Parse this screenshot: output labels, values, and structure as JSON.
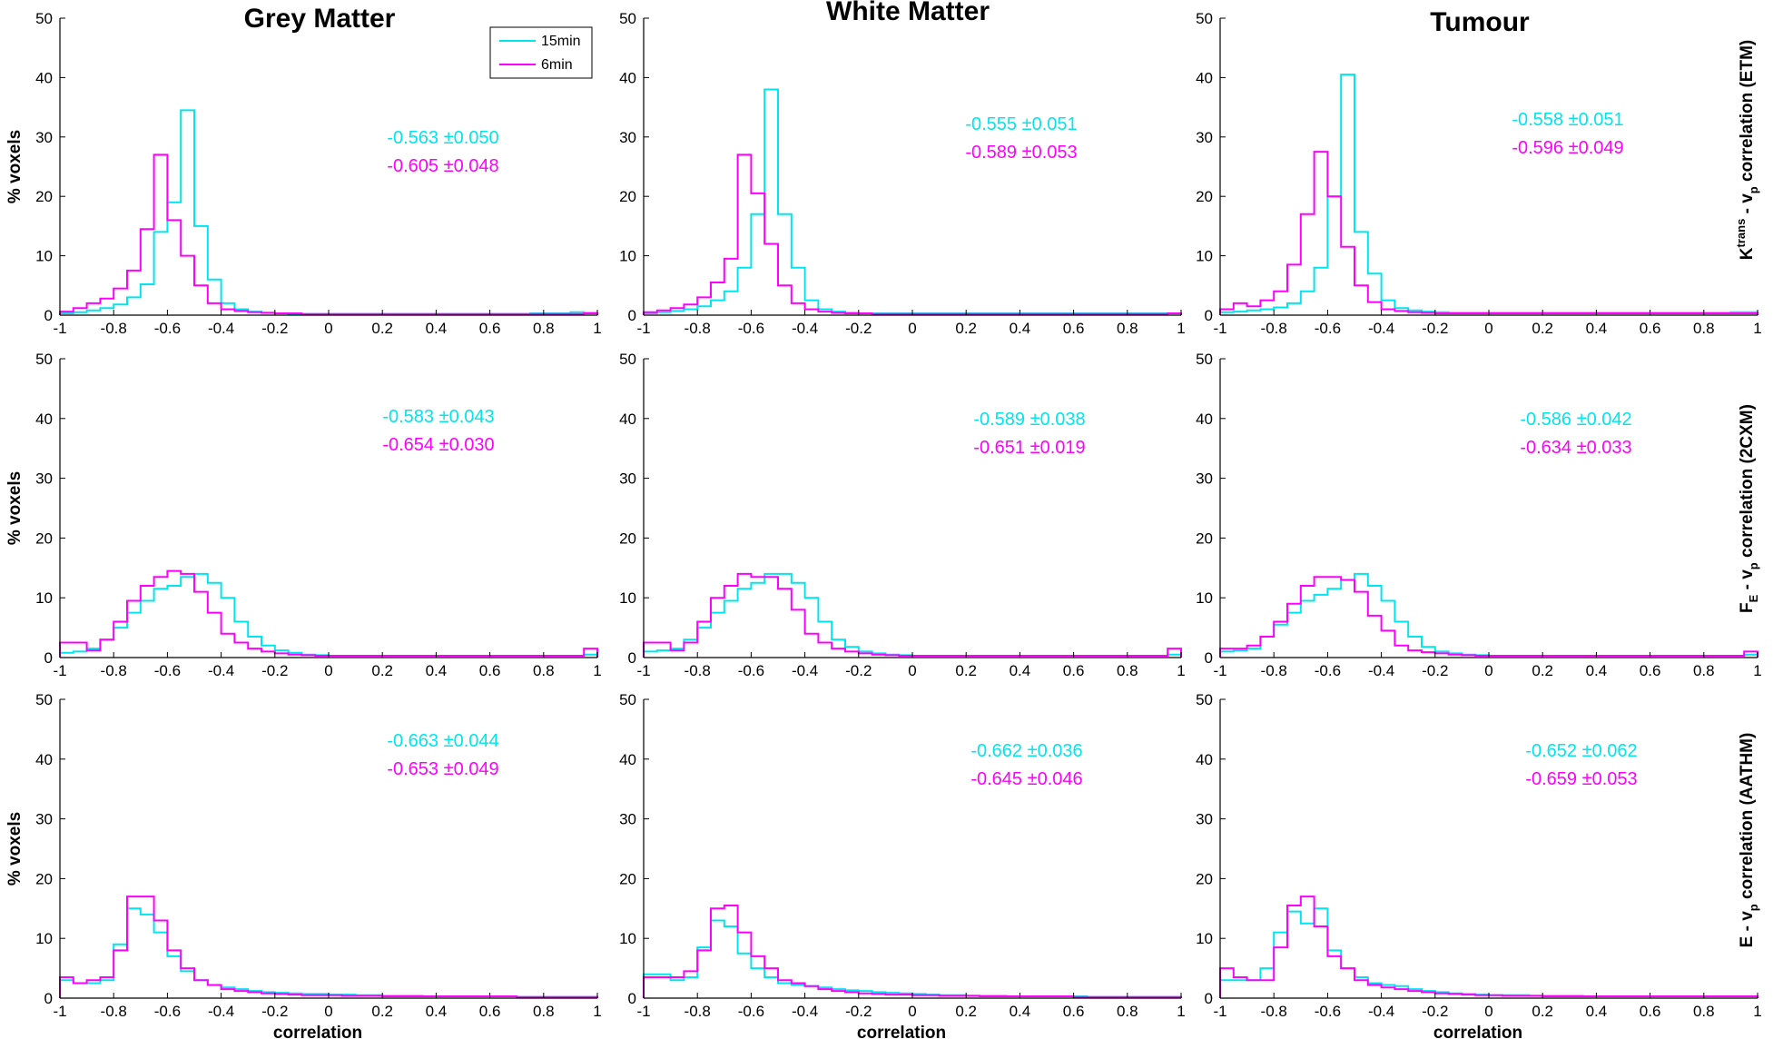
{
  "figure": {
    "column_titles": [
      "Grey Matter",
      "White Matter",
      "Tumour"
    ],
    "row_labels": [
      {
        "main": "K",
        "sup": "trans",
        "mid": " - v",
        "sub": "p",
        "tail": " correlation (ETM)"
      },
      {
        "main": "F",
        "sup": "",
        "mid": "",
        "sub": "E",
        "tail": " - v",
        "sub2": "p",
        "tail2": " correlation (2CXM)"
      },
      {
        "main": "E - v",
        "sup": "",
        "mid": "",
        "sub": "p",
        "tail": " correlation (AATHM)"
      }
    ],
    "ylabel": "% voxels",
    "xlabel": "correlation",
    "legend": {
      "entries": [
        {
          "label": "15min",
          "color": "#00e5ee"
        },
        {
          "label": "6min",
          "color": "#ff00ff"
        }
      ]
    },
    "colors": {
      "series_15min": "#00e5ee",
      "series_6min": "#ff00ff"
    }
  },
  "chart_data": [
    {
      "type": "bar",
      "row": 0,
      "col": 0,
      "title": "Grey Matter",
      "xlim": [
        -1,
        1
      ],
      "ylim": [
        0,
        50
      ],
      "xticks": [
        "-1",
        "-0.8",
        "-0.6",
        "-0.4",
        "-0.2",
        "0",
        "0.2",
        "0.4",
        "0.6",
        "0.8",
        "1"
      ],
      "yticks": [
        "0",
        "10",
        "20",
        "30",
        "40",
        "50"
      ],
      "series": [
        {
          "name": "15min",
          "stats": "-0.563 ±0.050",
          "values": [
            0.3,
            0.5,
            0.8,
            1.2,
            1.8,
            3.0,
            5.2,
            14,
            19,
            34.5,
            15,
            6,
            2,
            1,
            0.6,
            0.4,
            0.3,
            0.2,
            0.2,
            0.2,
            0.2,
            0.2,
            0.2,
            0.2,
            0.2,
            0.2,
            0.2,
            0.2,
            0.2,
            0.2,
            0.2,
            0.2,
            0.2,
            0.2,
            0.2,
            0.3,
            0.3,
            0.3,
            0.5,
            0.4
          ]
        },
        {
          "name": "6min",
          "stats": "-0.605 ±0.048",
          "values": [
            0.6,
            1.2,
            2,
            2.8,
            4.5,
            7.5,
            14.5,
            27,
            16,
            10,
            5,
            2,
            1,
            0.7,
            0.5,
            0.4,
            0.3,
            0.3,
            0.2,
            0.2,
            0.2,
            0.2,
            0.2,
            0.2,
            0.2,
            0.2,
            0.2,
            0.2,
            0.2,
            0.2,
            0.2,
            0.2,
            0.2,
            0.2,
            0.2,
            0.2,
            0.2,
            0.2,
            0.2,
            0.3
          ]
        }
      ]
    },
    {
      "type": "bar",
      "row": 0,
      "col": 1,
      "title": "White Matter",
      "xlim": [
        -1,
        1
      ],
      "ylim": [
        0,
        50
      ],
      "xticks": [
        "-1",
        "-0.8",
        "-0.6",
        "-0.4",
        "-0.2",
        "0",
        "0.2",
        "0.4",
        "0.6",
        "0.8",
        "1"
      ],
      "yticks": [
        "0",
        "10",
        "20",
        "30",
        "40",
        "50"
      ],
      "series": [
        {
          "name": "15min",
          "stats": "-0.555 ±0.051",
          "values": [
            0.3,
            0.5,
            0.7,
            1,
            1.5,
            2.5,
            4,
            8,
            17,
            38,
            17,
            8,
            2.5,
            1,
            0.6,
            0.4,
            0.3,
            0.3,
            0.3,
            0.3,
            0.3,
            0.3,
            0.3,
            0.3,
            0.3,
            0.3,
            0.3,
            0.3,
            0.3,
            0.3,
            0.3,
            0.3,
            0.3,
            0.3,
            0.3,
            0.3,
            0.3,
            0.3,
            0.3,
            0.3
          ]
        },
        {
          "name": "6min",
          "stats": "-0.589 ±0.053",
          "values": [
            0.5,
            0.8,
            1.2,
            1.8,
            3,
            5.5,
            9.5,
            27,
            20.5,
            12,
            5,
            2,
            1,
            0.6,
            0.4,
            0.3,
            0.3,
            0.2,
            0.2,
            0.2,
            0.2,
            0.2,
            0.2,
            0.2,
            0.2,
            0.2,
            0.2,
            0.2,
            0.2,
            0.2,
            0.2,
            0.2,
            0.2,
            0.2,
            0.2,
            0.2,
            0.2,
            0.2,
            0.2,
            0.3
          ]
        }
      ]
    },
    {
      "type": "bar",
      "row": 0,
      "col": 2,
      "title": "Tumour",
      "xlim": [
        -1,
        1
      ],
      "ylim": [
        0,
        50
      ],
      "xticks": [
        "-1",
        "-0.8",
        "-0.6",
        "-0.4",
        "-0.2",
        "0",
        "0.2",
        "0.4",
        "0.6",
        "0.8",
        "1"
      ],
      "yticks": [
        "0",
        "10",
        "20",
        "30",
        "40",
        "50"
      ],
      "series": [
        {
          "name": "15min",
          "stats": "-0.558 ±0.051",
          "values": [
            0.5,
            0.6,
            0.8,
            1,
            1.3,
            2,
            4,
            8,
            20,
            40.5,
            14,
            7,
            2.5,
            1.2,
            0.8,
            0.6,
            0.5,
            0.4,
            0.4,
            0.4,
            0.4,
            0.4,
            0.4,
            0.4,
            0.4,
            0.4,
            0.4,
            0.4,
            0.4,
            0.4,
            0.4,
            0.4,
            0.4,
            0.4,
            0.4,
            0.4,
            0.4,
            0.4,
            0.5,
            0.5
          ]
        },
        {
          "name": "6min",
          "stats": "-0.596 ±0.049",
          "values": [
            1,
            2,
            1.5,
            2.5,
            4,
            8.5,
            17,
            27.5,
            20,
            11.5,
            5,
            2.2,
            1,
            0.7,
            0.5,
            0.4,
            0.3,
            0.3,
            0.3,
            0.3,
            0.3,
            0.3,
            0.3,
            0.3,
            0.3,
            0.3,
            0.3,
            0.3,
            0.3,
            0.3,
            0.3,
            0.3,
            0.3,
            0.3,
            0.3,
            0.3,
            0.3,
            0.3,
            0.3,
            0.3
          ]
        }
      ]
    },
    {
      "type": "bar",
      "row": 1,
      "col": 0,
      "xlim": [
        -1,
        1
      ],
      "ylim": [
        0,
        50
      ],
      "xticks": [
        "-1",
        "-0.8",
        "-0.6",
        "-0.4",
        "-0.2",
        "0",
        "0.2",
        "0.4",
        "0.6",
        "0.8",
        "1"
      ],
      "yticks": [
        "0",
        "10",
        "20",
        "30",
        "40",
        "50"
      ],
      "series": [
        {
          "name": "15min",
          "stats": "-0.583 ±0.043",
          "values": [
            0.8,
            1,
            1.5,
            3,
            5,
            7.5,
            9.5,
            11.5,
            12,
            13.5,
            14,
            12.5,
            10,
            6,
            3.5,
            2,
            1.2,
            0.8,
            0.5,
            0.4,
            0.3,
            0.3,
            0.3,
            0.3,
            0.3,
            0.3,
            0.3,
            0.3,
            0.3,
            0.3,
            0.3,
            0.3,
            0.3,
            0.3,
            0.3,
            0.3,
            0.3,
            0.3,
            0.3,
            0.5
          ]
        },
        {
          "name": "6min",
          "stats": "-0.654 ±0.030",
          "values": [
            2.5,
            2.5,
            1.2,
            3,
            6,
            9.5,
            12,
            13.5,
            14.5,
            14,
            11,
            7.5,
            4,
            2.5,
            1.5,
            1,
            0.7,
            0.5,
            0.4,
            0.3,
            0.3,
            0.3,
            0.3,
            0.3,
            0.3,
            0.3,
            0.3,
            0.3,
            0.3,
            0.3,
            0.3,
            0.3,
            0.3,
            0.3,
            0.3,
            0.3,
            0.3,
            0.3,
            0.3,
            1.5
          ]
        }
      ]
    },
    {
      "type": "bar",
      "row": 1,
      "col": 1,
      "xlim": [
        -1,
        1
      ],
      "ylim": [
        0,
        50
      ],
      "xticks": [
        "-1",
        "-0.8",
        "-0.6",
        "-0.4",
        "-0.2",
        "0",
        "0.2",
        "0.4",
        "0.6",
        "0.8",
        "1"
      ],
      "yticks": [
        "0",
        "10",
        "20",
        "30",
        "40",
        "50"
      ],
      "series": [
        {
          "name": "15min",
          "stats": "-0.589 ±0.038",
          "values": [
            1,
            1.2,
            1.5,
            3,
            5,
            7.5,
            9.5,
            11.5,
            12.5,
            14,
            14,
            12.5,
            10,
            6,
            3,
            1.8,
            1,
            0.7,
            0.5,
            0.4,
            0.3,
            0.3,
            0.3,
            0.3,
            0.3,
            0.3,
            0.3,
            0.3,
            0.3,
            0.3,
            0.3,
            0.3,
            0.3,
            0.3,
            0.3,
            0.3,
            0.3,
            0.3,
            0.3,
            0.5
          ]
        },
        {
          "name": "6min",
          "stats": "-0.651 ±0.019",
          "values": [
            2.5,
            2.5,
            1.2,
            2.5,
            6,
            10,
            12,
            14,
            13.5,
            13.5,
            11.5,
            8,
            4,
            2.5,
            1.5,
            1,
            0.7,
            0.5,
            0.4,
            0.3,
            0.3,
            0.3,
            0.3,
            0.3,
            0.3,
            0.3,
            0.3,
            0.3,
            0.3,
            0.3,
            0.3,
            0.3,
            0.3,
            0.3,
            0.3,
            0.3,
            0.3,
            0.3,
            0.3,
            1.5
          ]
        }
      ]
    },
    {
      "type": "bar",
      "row": 1,
      "col": 2,
      "xlim": [
        -1,
        1
      ],
      "ylim": [
        0,
        50
      ],
      "xticks": [
        "-1",
        "-0.8",
        "-0.6",
        "-0.4",
        "-0.2",
        "0",
        "0.2",
        "0.4",
        "0.6",
        "0.8",
        "1"
      ],
      "yticks": [
        "0",
        "10",
        "20",
        "30",
        "40",
        "50"
      ],
      "series": [
        {
          "name": "15min",
          "stats": "-0.586 ±0.042",
          "values": [
            1,
            1.2,
            1.5,
            3.5,
            5.5,
            7.5,
            9.5,
            10.5,
            11.5,
            13,
            14,
            12,
            9.5,
            6,
            3.5,
            1.8,
            1,
            0.7,
            0.5,
            0.4,
            0.3,
            0.3,
            0.3,
            0.3,
            0.3,
            0.3,
            0.3,
            0.3,
            0.3,
            0.3,
            0.3,
            0.3,
            0.3,
            0.3,
            0.3,
            0.3,
            0.3,
            0.3,
            0.3,
            0.5
          ]
        },
        {
          "name": "6min",
          "stats": "-0.634 ±0.033",
          "values": [
            1.5,
            1.5,
            2,
            3.5,
            6,
            9,
            12,
            13.5,
            13.5,
            13,
            11,
            7,
            4.5,
            2,
            1.2,
            0.9,
            0.7,
            0.5,
            0.4,
            0.3,
            0.3,
            0.3,
            0.3,
            0.3,
            0.3,
            0.3,
            0.3,
            0.3,
            0.3,
            0.3,
            0.3,
            0.3,
            0.3,
            0.3,
            0.3,
            0.3,
            0.3,
            0.3,
            0.3,
            1
          ]
        }
      ]
    },
    {
      "type": "bar",
      "row": 2,
      "col": 0,
      "xlim": [
        -1,
        1
      ],
      "ylim": [
        0,
        50
      ],
      "xticks": [
        "-1",
        "-0.8",
        "-0.6",
        "-0.4",
        "-0.2",
        "0",
        "0.2",
        "0.4",
        "0.6",
        "0.8",
        "1"
      ],
      "yticks": [
        "0",
        "10",
        "20",
        "30",
        "40",
        "50"
      ],
      "series": [
        {
          "name": "15min",
          "stats": "-0.663 ±0.044",
          "values": [
            3,
            2.5,
            2.5,
            3,
            9,
            15,
            14,
            11,
            7,
            4.5,
            3,
            2.2,
            1.8,
            1.5,
            1.2,
            1,
            0.9,
            0.8,
            0.7,
            0.7,
            0.6,
            0.6,
            0.5,
            0.5,
            0.4,
            0.4,
            0.4,
            0.3,
            0.3,
            0.3,
            0.3,
            0.3,
            0.3,
            0.3,
            0.2,
            0.2,
            0.2,
            0.2,
            0.2,
            0.2
          ]
        },
        {
          "name": "6min",
          "stats": "-0.653 ±0.049",
          "values": [
            3.5,
            2.5,
            3,
            3.5,
            8,
            17,
            17,
            13,
            8,
            5,
            3,
            2.2,
            1.5,
            1.2,
            1,
            0.8,
            0.7,
            0.6,
            0.5,
            0.5,
            0.5,
            0.4,
            0.4,
            0.4,
            0.3,
            0.3,
            0.3,
            0.3,
            0.3,
            0.3,
            0.3,
            0.3,
            0.3,
            0.3,
            0.2,
            0.2,
            0.2,
            0.2,
            0.2,
            0.2
          ]
        }
      ]
    },
    {
      "type": "bar",
      "row": 2,
      "col": 1,
      "xlim": [
        -1,
        1
      ],
      "ylim": [
        0,
        50
      ],
      "xticks": [
        "-1",
        "-0.8",
        "-0.6",
        "-0.4",
        "-0.2",
        "0",
        "0.2",
        "0.4",
        "0.6",
        "0.8",
        "1"
      ],
      "yticks": [
        "0",
        "10",
        "20",
        "30",
        "40",
        "50"
      ],
      "series": [
        {
          "name": "15min",
          "stats": "-0.662 ±0.036",
          "values": [
            4,
            4,
            3,
            3.5,
            8.5,
            13,
            12,
            7.5,
            5,
            3.5,
            2.5,
            2.2,
            2,
            1.8,
            1.5,
            1.3,
            1.2,
            1,
            0.9,
            0.8,
            0.7,
            0.6,
            0.5,
            0.5,
            0.4,
            0.4,
            0.4,
            0.3,
            0.3,
            0.3,
            0.3,
            0.3,
            0.3,
            0.2,
            0.2,
            0.2,
            0.2,
            0.2,
            0.2,
            0.2
          ]
        },
        {
          "name": "6min",
          "stats": "-0.645 ±0.046",
          "values": [
            3.5,
            3.5,
            3.5,
            4.5,
            8,
            15,
            15.5,
            11,
            7,
            5,
            3,
            2.5,
            2,
            1.5,
            1.2,
            1,
            0.8,
            0.7,
            0.6,
            0.6,
            0.5,
            0.5,
            0.4,
            0.4,
            0.4,
            0.3,
            0.3,
            0.3,
            0.3,
            0.3,
            0.3,
            0.3,
            0.2,
            0.2,
            0.2,
            0.2,
            0.2,
            0.2,
            0.2,
            0.2
          ]
        }
      ]
    },
    {
      "type": "bar",
      "row": 2,
      "col": 2,
      "xlim": [
        -1,
        1
      ],
      "ylim": [
        0,
        50
      ],
      "xticks": [
        "-1",
        "-0.8",
        "-0.6",
        "-0.4",
        "-0.2",
        "0",
        "0.2",
        "0.4",
        "0.6",
        "0.8",
        "1"
      ],
      "yticks": [
        "0",
        "10",
        "20",
        "30",
        "40",
        "50"
      ],
      "series": [
        {
          "name": "15min",
          "stats": "-0.652 ±0.062",
          "values": [
            3,
            3,
            3,
            5,
            11,
            14.5,
            12.5,
            15,
            8,
            5,
            3.5,
            2.5,
            2.2,
            2,
            1.5,
            1.2,
            1,
            0.8,
            0.7,
            0.6,
            0.5,
            0.5,
            0.5,
            0.4,
            0.4,
            0.4,
            0.4,
            0.3,
            0.3,
            0.3,
            0.3,
            0.3,
            0.3,
            0.3,
            0.3,
            0.3,
            0.3,
            0.3,
            0.3,
            0.3
          ]
        },
        {
          "name": "6min",
          "stats": "-0.659 ±0.053",
          "values": [
            5,
            3.5,
            3,
            3,
            8.5,
            15.5,
            17,
            12,
            7,
            5,
            3,
            2.2,
            1.8,
            1.5,
            1.2,
            1,
            0.8,
            0.7,
            0.6,
            0.5,
            0.5,
            0.4,
            0.4,
            0.4,
            0.3,
            0.3,
            0.3,
            0.3,
            0.3,
            0.3,
            0.3,
            0.3,
            0.3,
            0.3,
            0.3,
            0.3,
            0.3,
            0.3,
            0.3,
            0.3
          ]
        }
      ]
    }
  ]
}
